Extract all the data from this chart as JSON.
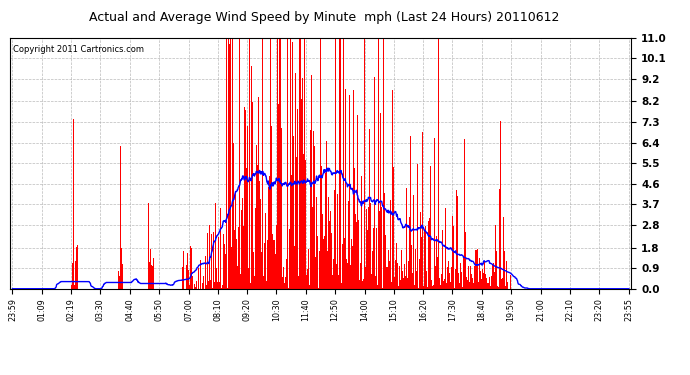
{
  "title": "Actual and Average Wind Speed by Minute  mph (Last 24 Hours) 20110612",
  "copyright": "Copyright 2011 Cartronics.com",
  "yticks": [
    0.0,
    0.9,
    1.8,
    2.8,
    3.7,
    4.6,
    5.5,
    6.4,
    7.3,
    8.2,
    9.2,
    10.1,
    11.0
  ],
  "ylim": [
    0.0,
    11.0
  ],
  "background_color": "#ffffff",
  "grid_color": "#aaaaaa",
  "bar_color": "#ff0000",
  "line_color": "#0000ff",
  "xtick_labels": [
    "23:59",
    "01:09",
    "02:19",
    "03:30",
    "04:40",
    "05:50",
    "07:00",
    "08:10",
    "09:20",
    "10:30",
    "11:40",
    "12:50",
    "14:00",
    "15:10",
    "16:20",
    "17:30",
    "18:40",
    "19:50",
    "21:00",
    "22:10",
    "23:20",
    "23:55"
  ],
  "n_minutes": 1440
}
